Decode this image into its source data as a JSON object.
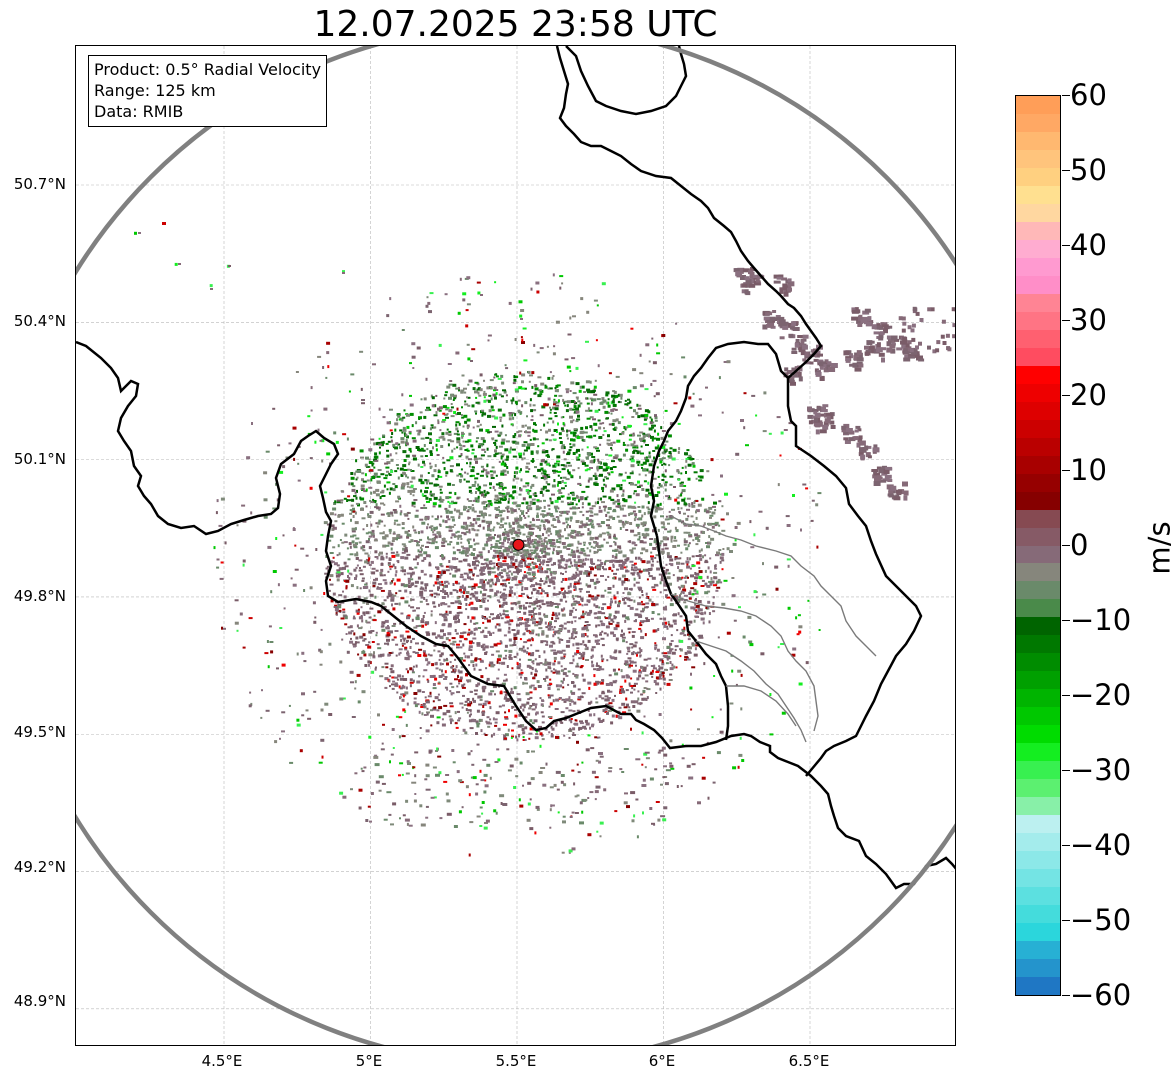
{
  "title": "12.07.2025 23:58 UTC",
  "info": {
    "product": "Product: 0.5° Radial Velocity",
    "range": "Range: 125 km",
    "data": "Data: RMIB"
  },
  "axes": {
    "lat_ticks": [
      "50.7°N",
      "50.4°N",
      "50.1°N",
      "49.8°N",
      "49.5°N",
      "49.2°N",
      "48.9°N"
    ],
    "lat_values": [
      50.7,
      50.4,
      50.1,
      49.8,
      49.5,
      49.2,
      48.9
    ],
    "lon_ticks": [
      "4.5°E",
      "5°E",
      "5.5°E",
      "6°E",
      "6.5°E"
    ],
    "lon_values": [
      4.5,
      5.0,
      5.5,
      6.0,
      6.5
    ],
    "lon_range": [
      4.0,
      7.0
    ],
    "lat_range": [
      48.8,
      51.0
    ]
  },
  "radar": {
    "lon": 5.505,
    "lat": 49.914,
    "range_km": 125,
    "marker_color": "#e8161b",
    "ring_color": "#808080"
  },
  "colorbar": {
    "unit": "m/s",
    "min": -60,
    "max": 60,
    "ticks": [
      "60",
      "50",
      "40",
      "30",
      "20",
      "10",
      "0",
      "−10",
      "−20",
      "−30",
      "−40",
      "−50",
      "−60"
    ],
    "tick_values": [
      60,
      50,
      40,
      30,
      20,
      10,
      0,
      -10,
      -20,
      -30,
      -40,
      -50,
      -60
    ],
    "colors": [
      "#1f77c4",
      "#2494cc",
      "#27b0d4",
      "#2bd6dc",
      "#44dcdc",
      "#5ce0e0",
      "#74e4e4",
      "#8ce8e8",
      "#a4ecec",
      "#bcf0f0",
      "#88f0a8",
      "#5cf070",
      "#38f050",
      "#14ee20",
      "#00dc00",
      "#00c800",
      "#00b400",
      "#00a000",
      "#008c00",
      "#007800",
      "#006400",
      "#4a8a4a",
      "#6a8a6a",
      "#86867c",
      "#866a78",
      "#865a66",
      "#864a52",
      "#860000",
      "#960000",
      "#a80000",
      "#ba0000",
      "#cc0000",
      "#de0000",
      "#ee0000",
      "#ff0000",
      "#ff4c60",
      "#ff6070",
      "#ff7484",
      "#ff8494",
      "#ff8ec8",
      "#ff9ad0",
      "#ffacd0",
      "#ffb8b8",
      "#ffd7a0",
      "#ffe090",
      "#ffd080",
      "#ffc47c",
      "#ffb870",
      "#ffa864",
      "#ff9e58"
    ]
  }
}
